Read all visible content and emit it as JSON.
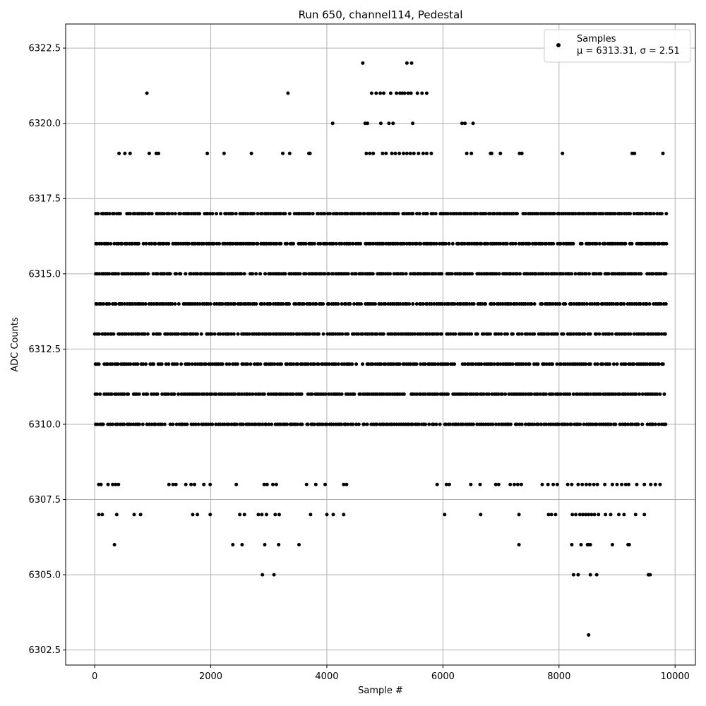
{
  "chart_data": {
    "type": "scatter",
    "title": "Run 650, channel114, Pedestal",
    "xlabel": "Sample #",
    "ylabel": "ADC Counts",
    "xlim": [
      -500,
      10350
    ],
    "ylim": [
      6302.0,
      6323.3
    ],
    "grid": true,
    "legend_position": "top-right",
    "xticks": [
      0,
      2000,
      4000,
      6000,
      8000,
      10000
    ],
    "xtick_labels": [
      "0",
      "2000",
      "4000",
      "6000",
      "8000",
      "10000"
    ],
    "yticks": [
      6302.5,
      6305.0,
      6307.5,
      6310.0,
      6312.5,
      6315.0,
      6317.5,
      6320.0,
      6322.5
    ],
    "ytick_labels": [
      "6302.5",
      "6305.0",
      "6307.5",
      "6310.0",
      "6312.5",
      "6315.0",
      "6317.5",
      "6320.0",
      "6322.5"
    ],
    "colors": {
      "marker": "#000000",
      "grid": "#b0b0b0"
    },
    "series": [
      {
        "name": "Samples",
        "legend_stats": "μ = 6313.31, σ = 2.51",
        "mean": 6313.31,
        "std": 2.51,
        "n_samples": 9840,
        "x_range": [
          0,
          9840
        ],
        "dense_levels": [
          6310,
          6311,
          6312,
          6313,
          6314,
          6315,
          6316,
          6317
        ],
        "points": [
          [
            900,
            6321
          ],
          [
            3330,
            6321
          ],
          [
            4620,
            6322
          ],
          [
            5380,
            6322
          ],
          [
            5460,
            6322
          ],
          [
            4100,
            6320
          ],
          [
            4660,
            6320
          ],
          [
            4700,
            6320
          ],
          [
            4930,
            6320
          ],
          [
            5070,
            6320
          ],
          [
            5140,
            6320
          ],
          [
            5480,
            6320
          ],
          [
            6330,
            6320
          ],
          [
            6380,
            6320
          ],
          [
            6520,
            6320
          ],
          [
            4770,
            6321
          ],
          [
            4850,
            6321
          ],
          [
            4920,
            6321
          ],
          [
            4980,
            6321
          ],
          [
            5100,
            6321
          ],
          [
            5200,
            6321
          ],
          [
            5260,
            6321
          ],
          [
            5300,
            6321
          ],
          [
            5340,
            6321
          ],
          [
            5400,
            6321
          ],
          [
            5450,
            6321
          ],
          [
            5560,
            6321
          ],
          [
            5640,
            6321
          ],
          [
            5720,
            6321
          ],
          [
            420,
            6319
          ],
          [
            520,
            6319
          ],
          [
            610,
            6319
          ],
          [
            940,
            6319
          ],
          [
            1060,
            6319
          ],
          [
            1100,
            6319
          ],
          [
            1940,
            6319
          ],
          [
            2230,
            6319
          ],
          [
            2700,
            6319
          ],
          [
            3240,
            6319
          ],
          [
            3360,
            6319
          ],
          [
            3690,
            6319
          ],
          [
            3710,
            6319
          ],
          [
            6410,
            6319
          ],
          [
            6490,
            6319
          ],
          [
            6820,
            6319
          ],
          [
            6840,
            6319
          ],
          [
            6990,
            6319
          ],
          [
            7320,
            6319
          ],
          [
            7360,
            6319
          ],
          [
            8060,
            6319
          ],
          [
            9260,
            6319
          ],
          [
            9300,
            6319
          ],
          [
            9790,
            6319
          ],
          [
            4680,
            6319
          ],
          [
            4740,
            6319
          ],
          [
            4800,
            6319
          ],
          [
            4960,
            6319
          ],
          [
            5020,
            6319
          ],
          [
            5120,
            6319
          ],
          [
            5180,
            6319
          ],
          [
            5250,
            6319
          ],
          [
            5320,
            6319
          ],
          [
            5380,
            6319
          ],
          [
            5440,
            6319
          ],
          [
            5500,
            6319
          ],
          [
            5580,
            6319
          ],
          [
            5660,
            6319
          ],
          [
            5720,
            6319
          ],
          [
            5800,
            6319
          ],
          [
            70,
            6308
          ],
          [
            110,
            6308
          ],
          [
            230,
            6308
          ],
          [
            310,
            6308
          ],
          [
            360,
            6308
          ],
          [
            410,
            6308
          ],
          [
            1280,
            6308
          ],
          [
            1350,
            6308
          ],
          [
            1400,
            6308
          ],
          [
            1570,
            6308
          ],
          [
            1660,
            6308
          ],
          [
            1720,
            6308
          ],
          [
            1880,
            6308
          ],
          [
            1990,
            6308
          ],
          [
            2440,
            6308
          ],
          [
            2920,
            6308
          ],
          [
            2970,
            6308
          ],
          [
            3070,
            6308
          ],
          [
            3130,
            6308
          ],
          [
            3650,
            6308
          ],
          [
            3810,
            6308
          ],
          [
            3970,
            6308
          ],
          [
            4290,
            6308
          ],
          [
            4340,
            6308
          ],
          [
            5900,
            6308
          ],
          [
            6060,
            6308
          ],
          [
            6110,
            6308
          ],
          [
            6480,
            6308
          ],
          [
            6640,
            6308
          ],
          [
            6910,
            6308
          ],
          [
            6960,
            6308
          ],
          [
            7160,
            6308
          ],
          [
            7230,
            6308
          ],
          [
            7290,
            6308
          ],
          [
            7350,
            6308
          ],
          [
            7710,
            6308
          ],
          [
            7810,
            6308
          ],
          [
            7900,
            6308
          ],
          [
            7970,
            6308
          ],
          [
            8150,
            6308
          ],
          [
            8220,
            6308
          ],
          [
            8330,
            6308
          ],
          [
            8400,
            6308
          ],
          [
            8470,
            6308
          ],
          [
            8530,
            6308
          ],
          [
            8600,
            6308
          ],
          [
            8660,
            6308
          ],
          [
            8790,
            6308
          ],
          [
            8920,
            6308
          ],
          [
            9000,
            6308
          ],
          [
            9080,
            6308
          ],
          [
            9150,
            6308
          ],
          [
            9200,
            6308
          ],
          [
            9340,
            6308
          ],
          [
            9470,
            6308
          ],
          [
            9580,
            6308
          ],
          [
            9660,
            6308
          ],
          [
            9740,
            6308
          ],
          [
            70,
            6307
          ],
          [
            130,
            6307
          ],
          [
            380,
            6307
          ],
          [
            680,
            6307
          ],
          [
            790,
            6307
          ],
          [
            1690,
            6307
          ],
          [
            1770,
            6307
          ],
          [
            1990,
            6307
          ],
          [
            2500,
            6307
          ],
          [
            2580,
            6307
          ],
          [
            2820,
            6307
          ],
          [
            2880,
            6307
          ],
          [
            2960,
            6307
          ],
          [
            3110,
            6307
          ],
          [
            3180,
            6307
          ],
          [
            3720,
            6307
          ],
          [
            4000,
            6307
          ],
          [
            4110,
            6307
          ],
          [
            4290,
            6307
          ],
          [
            6030,
            6307
          ],
          [
            6650,
            6307
          ],
          [
            7310,
            6307
          ],
          [
            7820,
            6307
          ],
          [
            7870,
            6307
          ],
          [
            7940,
            6307
          ],
          [
            8230,
            6307
          ],
          [
            8290,
            6307
          ],
          [
            8360,
            6307
          ],
          [
            8410,
            6307
          ],
          [
            8460,
            6307
          ],
          [
            8510,
            6307
          ],
          [
            8560,
            6307
          ],
          [
            8610,
            6307
          ],
          [
            8680,
            6307
          ],
          [
            8800,
            6307
          ],
          [
            8890,
            6307
          ],
          [
            9030,
            6307
          ],
          [
            9120,
            6307
          ],
          [
            9320,
            6307
          ],
          [
            9470,
            6307
          ],
          [
            340,
            6306
          ],
          [
            2380,
            6306
          ],
          [
            2540,
            6306
          ],
          [
            2930,
            6306
          ],
          [
            3170,
            6306
          ],
          [
            3520,
            6306
          ],
          [
            7310,
            6306
          ],
          [
            8220,
            6306
          ],
          [
            8380,
            6306
          ],
          [
            8490,
            6306
          ],
          [
            8510,
            6306
          ],
          [
            8540,
            6306
          ],
          [
            8920,
            6306
          ],
          [
            9190,
            6306
          ],
          [
            9210,
            6306
          ],
          [
            2890,
            6305
          ],
          [
            3090,
            6305
          ],
          [
            8250,
            6305
          ],
          [
            8330,
            6305
          ],
          [
            8540,
            6305
          ],
          [
            8650,
            6305
          ],
          [
            9540,
            6305
          ],
          [
            9570,
            6305
          ],
          [
            8510,
            6303
          ]
        ]
      }
    ]
  }
}
